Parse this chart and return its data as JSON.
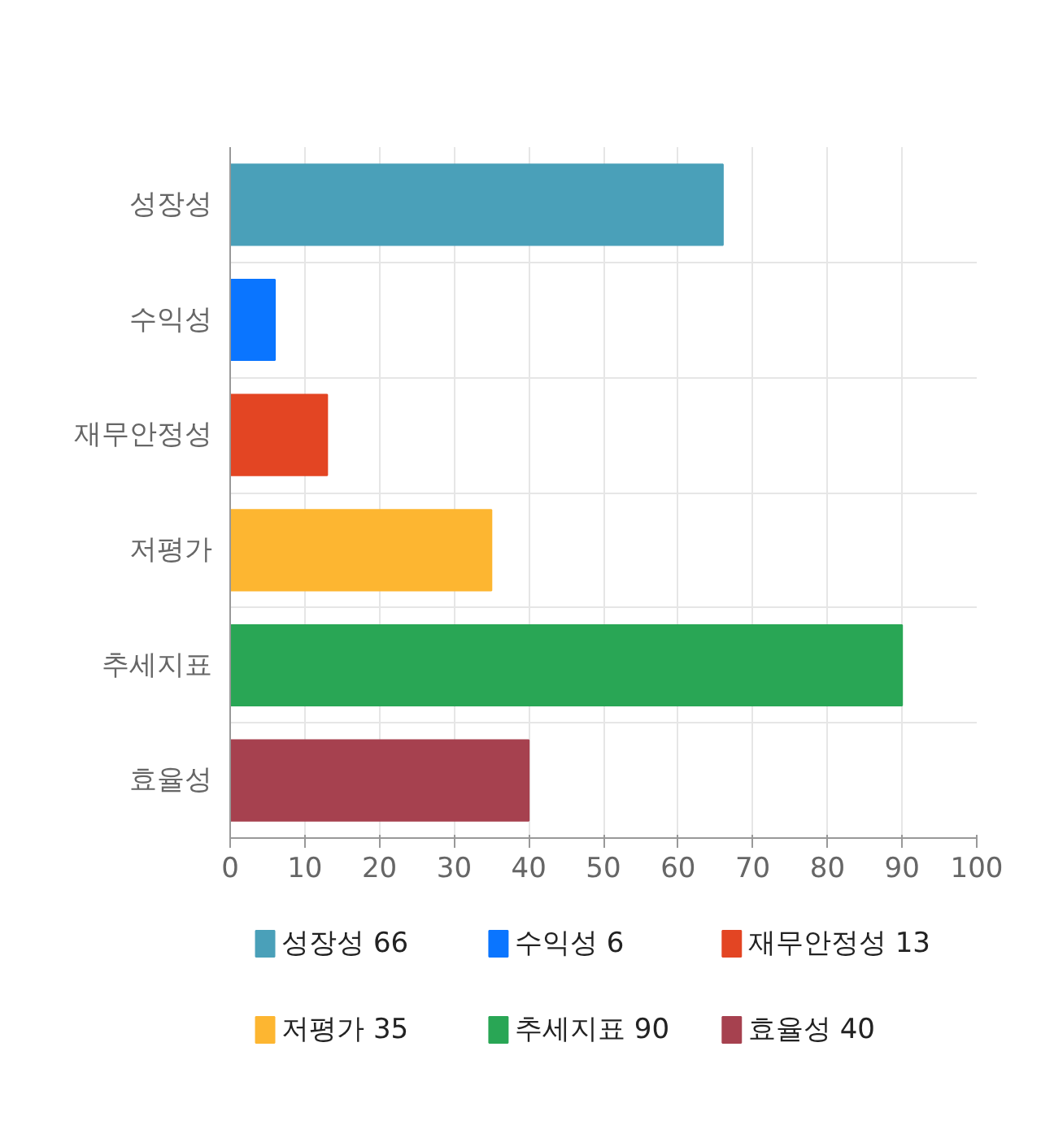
{
  "chart_data": {
    "type": "bar",
    "orientation": "horizontal",
    "stacked": true,
    "categories": [
      "성장성",
      "수익성",
      "재무안정성",
      "저평가",
      "추세지표",
      "효율성"
    ],
    "series": [
      {
        "name": "성장성 66",
        "color": "#4aa0b9",
        "values": [
          66,
          null,
          null,
          null,
          null,
          null
        ]
      },
      {
        "name": "수익성 6",
        "color": "#0a75ff",
        "values": [
          null,
          6,
          null,
          null,
          null,
          null
        ]
      },
      {
        "name": "재무안정성 13",
        "color": "#e34523",
        "values": [
          null,
          null,
          13,
          null,
          null,
          null
        ]
      },
      {
        "name": "저평가 35",
        "color": "#fdb631",
        "values": [
          null,
          null,
          null,
          35,
          null,
          null
        ]
      },
      {
        "name": "추세지표 90",
        "color": "#29a655",
        "values": [
          null,
          null,
          null,
          null,
          90,
          null
        ]
      },
      {
        "name": "효율성 40",
        "color": "#a6414f",
        "values": [
          null,
          null,
          null,
          null,
          null,
          40
        ]
      }
    ],
    "xlim": [
      0,
      100
    ],
    "xticks": [
      0,
      10,
      20,
      30,
      40,
      50,
      60,
      70,
      80,
      90,
      100
    ],
    "grid": true,
    "legend": "bottom"
  }
}
